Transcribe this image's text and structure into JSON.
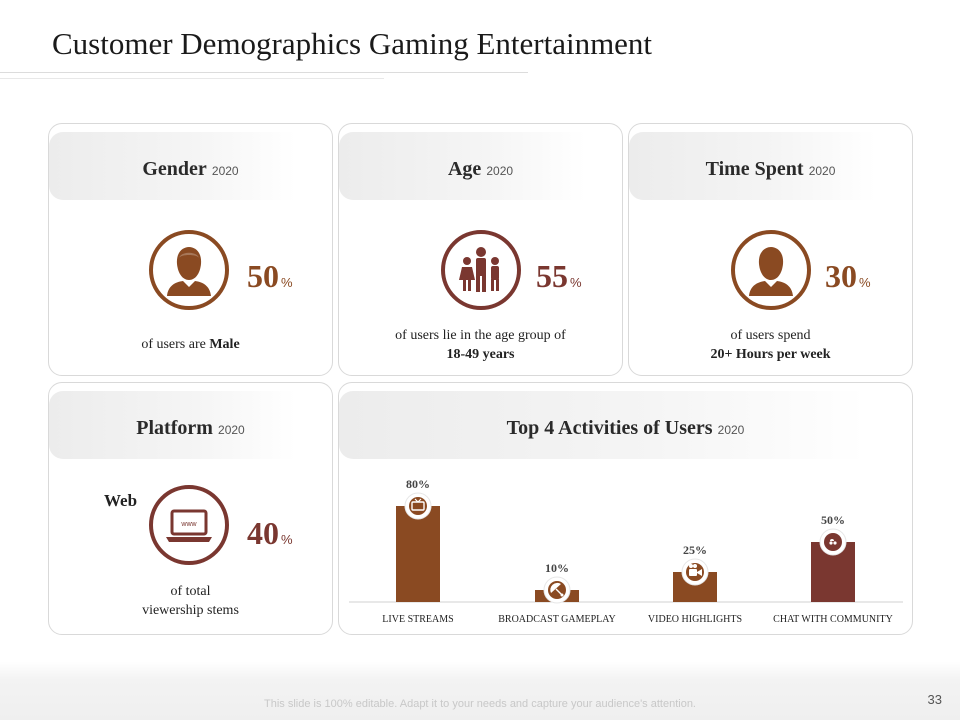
{
  "slide": {
    "title": "Customer Demographics  Gaming Entertainment",
    "footer_note": "This slide is 100% editable. Adapt it to your needs and capture your audience's attention.",
    "page_number": "33"
  },
  "colors": {
    "brown": "#8a4a22",
    "maroon": "#7a3730",
    "border": "#d9d9d9"
  },
  "gender": {
    "label": "Gender",
    "year": "2020",
    "value": "50",
    "unit": "%",
    "desc_prefix": "of users are ",
    "desc_bold": "Male",
    "icon": "male-user-icon"
  },
  "age": {
    "label": "Age",
    "year": "2020",
    "value": "55",
    "unit": "%",
    "desc_line1": "of users lie in the age group of",
    "desc_bold": "18-49  years",
    "icon": "family-icon"
  },
  "time_spent": {
    "label": "Time Spent",
    "year": "2020",
    "value": "30",
    "unit": "%",
    "desc_line1": "of users spend",
    "desc_bold": "20+ Hours per week",
    "icon": "male-user-icon"
  },
  "platform": {
    "label": "Platform",
    "year": "2020",
    "web_label": "Web",
    "value": "40",
    "unit": "%",
    "desc_line1": "of total",
    "desc_line2": "viewership stems",
    "icon": "web-laptop-icon"
  },
  "activities": {
    "label": "Top 4 Activities of Users",
    "year": "2020"
  },
  "chart_data": {
    "type": "bar",
    "title": "Top 4 Activities of Users 2020",
    "categories": [
      "LIVE STREAMS",
      "BROADCAST GAMEPLAY",
      "VIDEO HIGHLIGHTS",
      "CHAT WITH COMMUNITY"
    ],
    "values": [
      80,
      10,
      25,
      50
    ],
    "value_labels": [
      "80%",
      "10%",
      "25%",
      "50%"
    ],
    "bar_colors": [
      "#8a4a22",
      "#8a4a22",
      "#8a4a22",
      "#7a3730"
    ],
    "icons": [
      "tv-icon",
      "satellite-dish-icon",
      "video-camera-icon",
      "chat-bubble-icon"
    ],
    "ylim": [
      0,
      100
    ],
    "xlabel": "",
    "ylabel": ""
  }
}
